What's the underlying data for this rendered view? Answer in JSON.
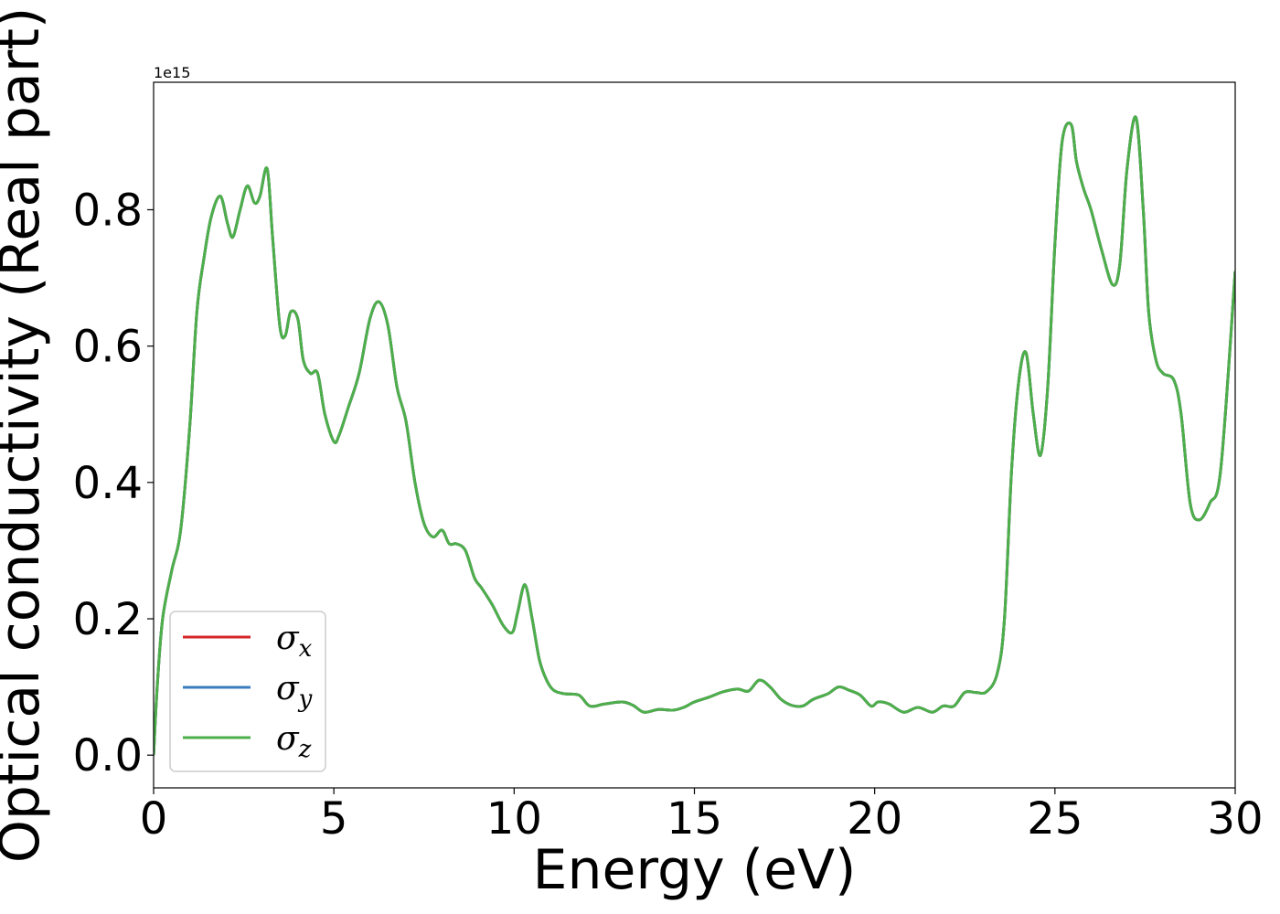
{
  "chart_data": {
    "type": "line",
    "xlabel": "Energy (eV)",
    "ylabel": "Optical conductivity (Real part)",
    "y_offset_text": "1e15",
    "y_scale": 1000000000000000.0,
    "xlim": [
      0,
      30
    ],
    "ylim": [
      -0.048,
      0.987
    ],
    "x_ticks": [
      0,
      5,
      10,
      15,
      20,
      25,
      30
    ],
    "x_tick_labels": [
      "0",
      "5",
      "10",
      "15",
      "20",
      "25",
      "30"
    ],
    "y_ticks": [
      0.0,
      0.2,
      0.4,
      0.6,
      0.8
    ],
    "y_tick_labels": [
      "0.0",
      "0.2",
      "0.4",
      "0.6",
      "0.8"
    ],
    "grid": false,
    "legend_position": "lower-left",
    "series": [
      {
        "name": "σx",
        "base": "σ",
        "sub": "x",
        "color": "#d62728"
      },
      {
        "name": "σy",
        "base": "σ",
        "sub": "y",
        "color": "#3a7dbf"
      },
      {
        "name": "σz",
        "base": "σ",
        "sub": "z",
        "color": "#4daf4a"
      }
    ],
    "x": [
      0,
      0.1,
      0.25,
      0.5,
      0.75,
      1.0,
      1.2,
      1.4,
      1.6,
      1.85,
      2.05,
      2.2,
      2.4,
      2.6,
      2.8,
      2.95,
      3.15,
      3.3,
      3.5,
      3.65,
      3.8,
      4.0,
      4.15,
      4.35,
      4.55,
      4.75,
      5.0,
      5.15,
      5.4,
      5.7,
      6.0,
      6.25,
      6.5,
      6.75,
      7.0,
      7.25,
      7.5,
      7.75,
      8.0,
      8.2,
      8.4,
      8.65,
      8.9,
      9.1,
      9.4,
      9.7,
      9.95,
      10.1,
      10.3,
      10.5,
      10.7,
      10.9,
      11.1,
      11.4,
      11.8,
      12.1,
      12.5,
      13.0,
      13.3,
      13.6,
      14.0,
      14.4,
      14.7,
      15.0,
      15.4,
      15.8,
      16.2,
      16.5,
      16.8,
      17.1,
      17.4,
      17.7,
      18.0,
      18.3,
      18.7,
      19.0,
      19.3,
      19.6,
      19.9,
      20.1,
      20.4,
      20.8,
      21.2,
      21.6,
      21.9,
      22.2,
      22.5,
      22.8,
      23.1,
      23.4,
      23.6,
      23.8,
      24.0,
      24.2,
      24.4,
      24.6,
      24.8,
      25.0,
      25.2,
      25.45,
      25.6,
      25.8,
      26.0,
      26.3,
      26.6,
      26.8,
      27.0,
      27.25,
      27.45,
      27.6,
      27.8,
      28.0,
      28.3,
      28.5,
      28.75,
      29.0,
      29.3,
      29.6,
      30.0
    ],
    "values": [
      0.0,
      0.1,
      0.2,
      0.27,
      0.33,
      0.48,
      0.65,
      0.73,
      0.79,
      0.82,
      0.78,
      0.76,
      0.8,
      0.835,
      0.81,
      0.82,
      0.86,
      0.76,
      0.63,
      0.615,
      0.65,
      0.64,
      0.58,
      0.56,
      0.56,
      0.5,
      0.46,
      0.47,
      0.51,
      0.56,
      0.64,
      0.665,
      0.63,
      0.54,
      0.49,
      0.4,
      0.34,
      0.32,
      0.33,
      0.31,
      0.31,
      0.3,
      0.26,
      0.245,
      0.22,
      0.19,
      0.18,
      0.21,
      0.25,
      0.2,
      0.14,
      0.11,
      0.095,
      0.09,
      0.088,
      0.072,
      0.075,
      0.078,
      0.073,
      0.063,
      0.067,
      0.066,
      0.07,
      0.078,
      0.085,
      0.093,
      0.097,
      0.094,
      0.11,
      0.1,
      0.082,
      0.073,
      0.072,
      0.082,
      0.09,
      0.1,
      0.095,
      0.088,
      0.072,
      0.078,
      0.075,
      0.063,
      0.07,
      0.063,
      0.072,
      0.072,
      0.092,
      0.092,
      0.093,
      0.12,
      0.2,
      0.42,
      0.55,
      0.59,
      0.5,
      0.44,
      0.54,
      0.75,
      0.9,
      0.925,
      0.87,
      0.83,
      0.8,
      0.74,
      0.69,
      0.72,
      0.86,
      0.935,
      0.8,
      0.65,
      0.58,
      0.56,
      0.55,
      0.5,
      0.37,
      0.345,
      0.37,
      0.42,
      0.71
    ]
  }
}
